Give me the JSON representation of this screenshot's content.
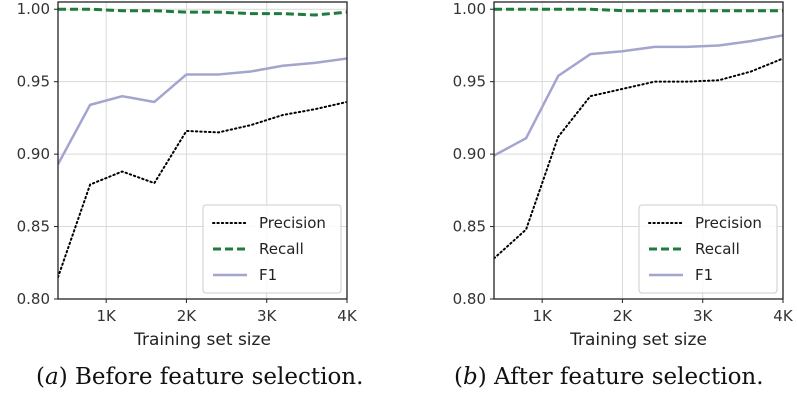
{
  "chart_data": [
    {
      "type": "line",
      "caption_symbol": "a",
      "caption_text": "Before feature selection.",
      "xlabel": "Training set size",
      "ylabel": "",
      "xlim": [
        400,
        4000
      ],
      "ylim": [
        0.8,
        1.005
      ],
      "xticks": [
        1000,
        2000,
        3000,
        4000
      ],
      "xtick_labels": [
        "1K",
        "2K",
        "3K",
        "4K"
      ],
      "yticks": [
        0.8,
        0.85,
        0.9,
        0.95,
        1.0
      ],
      "ytick_labels": [
        "0.80",
        "0.85",
        "0.90",
        "0.95",
        "1.00"
      ],
      "grid": true,
      "legend_position": "bottom-right",
      "series": [
        {
          "name": "Precision",
          "color": "#000000",
          "style": "dotted",
          "x": [
            400,
            800,
            1200,
            1600,
            2000,
            2400,
            2800,
            3200,
            3600,
            4000
          ],
          "y": [
            0.815,
            0.879,
            0.888,
            0.88,
            0.916,
            0.915,
            0.92,
            0.927,
            0.931,
            0.936
          ]
        },
        {
          "name": "Recall",
          "color": "#1e7b3c",
          "style": "dashed",
          "x": [
            400,
            800,
            1200,
            1600,
            2000,
            2400,
            2800,
            3200,
            3600,
            4000
          ],
          "y": [
            1.0,
            1.0,
            0.999,
            0.999,
            0.998,
            0.998,
            0.997,
            0.997,
            0.996,
            0.998
          ]
        },
        {
          "name": "F1",
          "color": "#a3a5cf",
          "style": "solid",
          "x": [
            400,
            800,
            1200,
            1600,
            2000,
            2400,
            2800,
            3200,
            3600,
            4000
          ],
          "y": [
            0.893,
            0.934,
            0.94,
            0.936,
            0.955,
            0.955,
            0.957,
            0.961,
            0.963,
            0.966
          ]
        }
      ]
    },
    {
      "type": "line",
      "caption_symbol": "b",
      "caption_text": "After feature selection.",
      "xlabel": "Training set size",
      "ylabel": "",
      "xlim": [
        400,
        4000
      ],
      "ylim": [
        0.8,
        1.005
      ],
      "xticks": [
        1000,
        2000,
        3000,
        4000
      ],
      "xtick_labels": [
        "1K",
        "2K",
        "3K",
        "4K"
      ],
      "yticks": [
        0.8,
        0.85,
        0.9,
        0.95,
        1.0
      ],
      "ytick_labels": [
        "0.80",
        "0.85",
        "0.90",
        "0.95",
        "1.00"
      ],
      "grid": true,
      "legend_position": "bottom-right",
      "series": [
        {
          "name": "Precision",
          "color": "#000000",
          "style": "dotted",
          "x": [
            400,
            800,
            1200,
            1600,
            2000,
            2400,
            2800,
            3200,
            3600,
            4000
          ],
          "y": [
            0.828,
            0.848,
            0.912,
            0.94,
            0.945,
            0.95,
            0.95,
            0.951,
            0.957,
            0.966
          ]
        },
        {
          "name": "Recall",
          "color": "#1e7b3c",
          "style": "dashed",
          "x": [
            400,
            800,
            1200,
            1600,
            2000,
            2400,
            2800,
            3200,
            3600,
            4000
          ],
          "y": [
            1.0,
            1.0,
            1.0,
            1.0,
            0.999,
            0.999,
            0.999,
            0.999,
            0.999,
            0.999
          ]
        },
        {
          "name": "F1",
          "color": "#a3a5cf",
          "style": "solid",
          "x": [
            400,
            800,
            1200,
            1600,
            2000,
            2400,
            2800,
            3200,
            3600,
            4000
          ],
          "y": [
            0.899,
            0.911,
            0.954,
            0.969,
            0.971,
            0.974,
            0.974,
            0.975,
            0.978,
            0.982
          ]
        }
      ]
    }
  ]
}
